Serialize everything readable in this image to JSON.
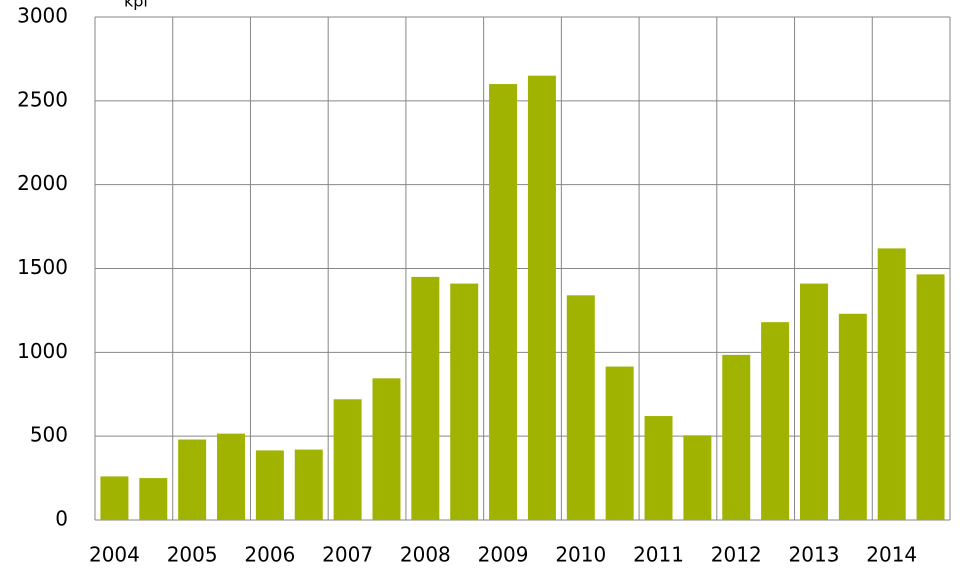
{
  "chart_data": {
    "type": "bar",
    "unit_label": "kpl",
    "categories": [
      "2004",
      null,
      "2005",
      null,
      "2006",
      null,
      "2007",
      null,
      "2008",
      null,
      "2009",
      null,
      "2010",
      null,
      "2011",
      null,
      "2012",
      null,
      "2013",
      null,
      "2014",
      null
    ],
    "values": [
      260,
      250,
      480,
      515,
      415,
      420,
      720,
      845,
      1450,
      1410,
      2600,
      2650,
      1340,
      915,
      620,
      505,
      985,
      1180,
      1410,
      1230,
      1620,
      1465
    ],
    "color": "#9fb300",
    "ylim": [
      0,
      3000
    ],
    "yticks": [
      0,
      500,
      1000,
      1500,
      2000,
      2500,
      3000
    ],
    "grid": true
  }
}
